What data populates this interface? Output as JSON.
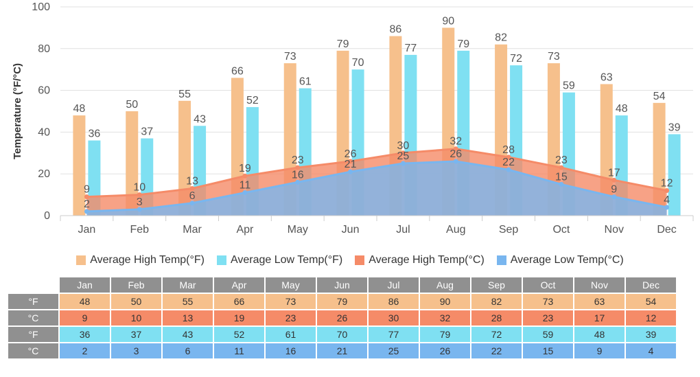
{
  "chart_data": {
    "type": "bar+area",
    "ylabel": "Temperature (°F/°C)",
    "ylim": [
      0,
      100
    ],
    "yticks": [
      0,
      20,
      40,
      60,
      80,
      100
    ],
    "categories": [
      "Jan",
      "Feb",
      "Mar",
      "Apr",
      "May",
      "Jun",
      "Jul",
      "Aug",
      "Sep",
      "Oct",
      "Nov",
      "Dec"
    ],
    "series": [
      {
        "name": "Average High Temp(°F)",
        "kind": "bar",
        "color": "#f6c08c",
        "values": [
          48,
          50,
          55,
          66,
          73,
          79,
          86,
          90,
          82,
          73,
          63,
          54
        ]
      },
      {
        "name": "Average Low Temp(°F)",
        "kind": "bar",
        "color": "#7fe0f2",
        "values": [
          36,
          37,
          43,
          52,
          61,
          70,
          77,
          79,
          72,
          59,
          48,
          39
        ]
      },
      {
        "name": "Average High Temp(°C)",
        "kind": "area",
        "color": "#f58b68",
        "values": [
          9,
          10,
          13,
          19,
          23,
          26,
          30,
          32,
          28,
          23,
          17,
          12
        ]
      },
      {
        "name": "Average Low Temp(°C)",
        "kind": "area",
        "color": "#79b6ef",
        "values": [
          2,
          3,
          6,
          11,
          16,
          21,
          25,
          26,
          22,
          15,
          9,
          4
        ]
      }
    ]
  },
  "table": {
    "row_labels": [
      "°F",
      "°C",
      "°F",
      "°C"
    ]
  }
}
